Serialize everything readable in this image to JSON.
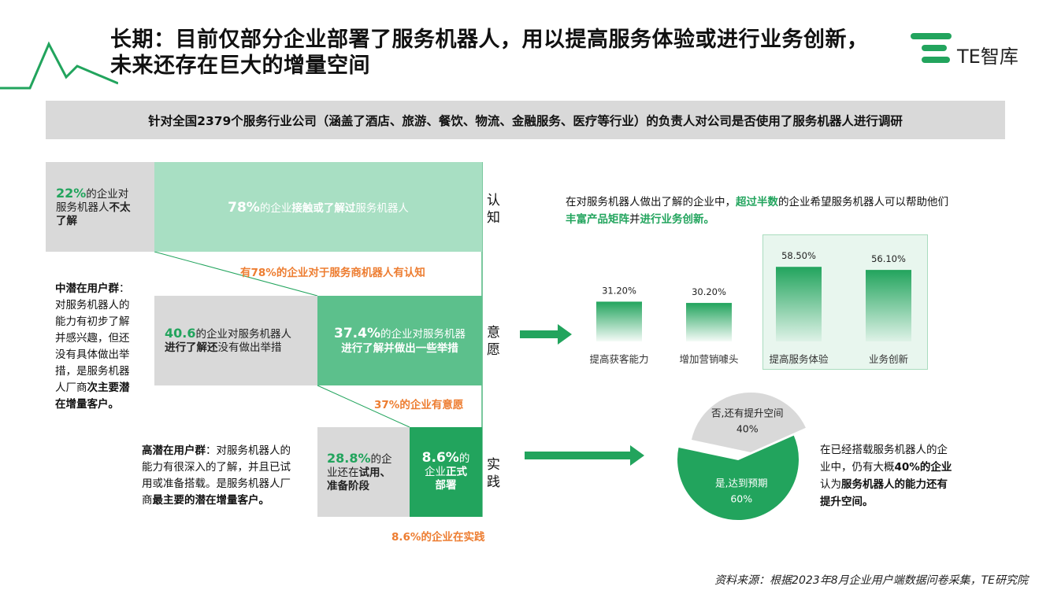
{
  "header": {
    "title_line1": "长期：目前仅部分企业部署了服务机器人，用以提高服务体验或进行业务创新，",
    "title_line2": "未来还存在巨大的增量空间",
    "logo_text": "TE智库",
    "brand_color": "#22a45d"
  },
  "banner": "针对全国2379个服务行业公司（涵盖了酒店、旅游、餐饮、物流、金融服务、医疗等行业）的负责人对公司是否使用了服务机器人进行调研",
  "funnel": {
    "row1": {
      "left_num": "22%",
      "left_t1": "的企业对",
      "left_t2": "服务机器人",
      "left_t3": "不太",
      "left_t4": "了解",
      "right_num": "78%",
      "right_t1": "的企业",
      "right_t2": "接触或了解过",
      "right_t3": "服务机器人",
      "stage": [
        "认",
        "知"
      ],
      "caption": "有78%的企业对于服务商机器人有认知"
    },
    "row2": {
      "left_num": "40.6",
      "left_t1": "的企业对服务机器人",
      "left_t2": "进行了解还",
      "left_t3": "没有做出举措",
      "right_num": "37.4%",
      "right_t1": "的企业对服务机器",
      "right_t2": "进行了解并做出一些举措",
      "stage": [
        "意",
        "愿"
      ],
      "caption": "37%的企业有意愿"
    },
    "row3": {
      "left_num": "28.8%",
      "left_t1": "的企",
      "left_t2": "业还在",
      "left_t3": "试用、",
      "left_t4": "准备阶段",
      "right_num": "8.6%",
      "right_t1": "的",
      "right_t2": "企业",
      "right_t3": "正式",
      "right_t4": "部署",
      "stage": [
        "实",
        "践"
      ],
      "caption": "8.6%的企业在实践"
    }
  },
  "mid_note": {
    "bold1": "中潜在用户群",
    "colon": "：",
    "l1": "对服务机器人的",
    "l2": "能力有初步了解",
    "l3": "并感兴趣，但还",
    "l4": "没有具体做出举",
    "l5": "措，是服务机器",
    "l6a": "人厂商",
    "l6b": "次主要潜",
    "l7": "在增量客户。"
  },
  "high_note": {
    "bold1": "高潜在用户群",
    "t1": "：对服务机器人的",
    "l2": "能力有很深入的了解，并且已试",
    "l3": "用或准备搭载。是服务机器人厂",
    "l4a": "商",
    "l4b": "最主要的潜在增量客户。"
  },
  "bar_note": {
    "l1a": "在对服务机器人做出了解的企业中，",
    "l1b": "超过半数",
    "l1c": "的企业希望服务机器人可以帮助他们",
    "l2a": "丰富产品矩阵",
    "l2b": "并",
    "l2c": "进行业务创新。"
  },
  "pie_note": {
    "l1": "在已经搭载服务机器人的企",
    "l2a": "业中，仍有大概",
    "l2b": "40%的企业",
    "l3a": "认为",
    "l3b": "服务机器人的能力还有",
    "l4": "提升空间。"
  },
  "source": "资料来源：根据2023年8月企业用户端数据问卷采集，TE研究院",
  "chart_data": [
    {
      "type": "bar",
      "categories": [
        "提高获客能力",
        "增加营销噱头",
        "提高服务体验",
        "业务创新"
      ],
      "values": [
        31.2,
        30.2,
        58.5,
        56.1
      ],
      "value_labels": [
        "31.20%",
        "30.20%",
        "58.50%",
        "56.10%"
      ],
      "highlighted": [
        "提高服务体验",
        "业务创新"
      ],
      "color": "#22a45d",
      "title": "",
      "xlabel": "",
      "ylabel": ""
    },
    {
      "type": "pie",
      "labels": [
        "是,达到预期",
        "否,还有提升空间"
      ],
      "values": [
        60,
        40
      ],
      "value_labels": [
        "60%",
        "40%"
      ],
      "colors": [
        "#22a45d",
        "#d9d9d9"
      ]
    }
  ]
}
